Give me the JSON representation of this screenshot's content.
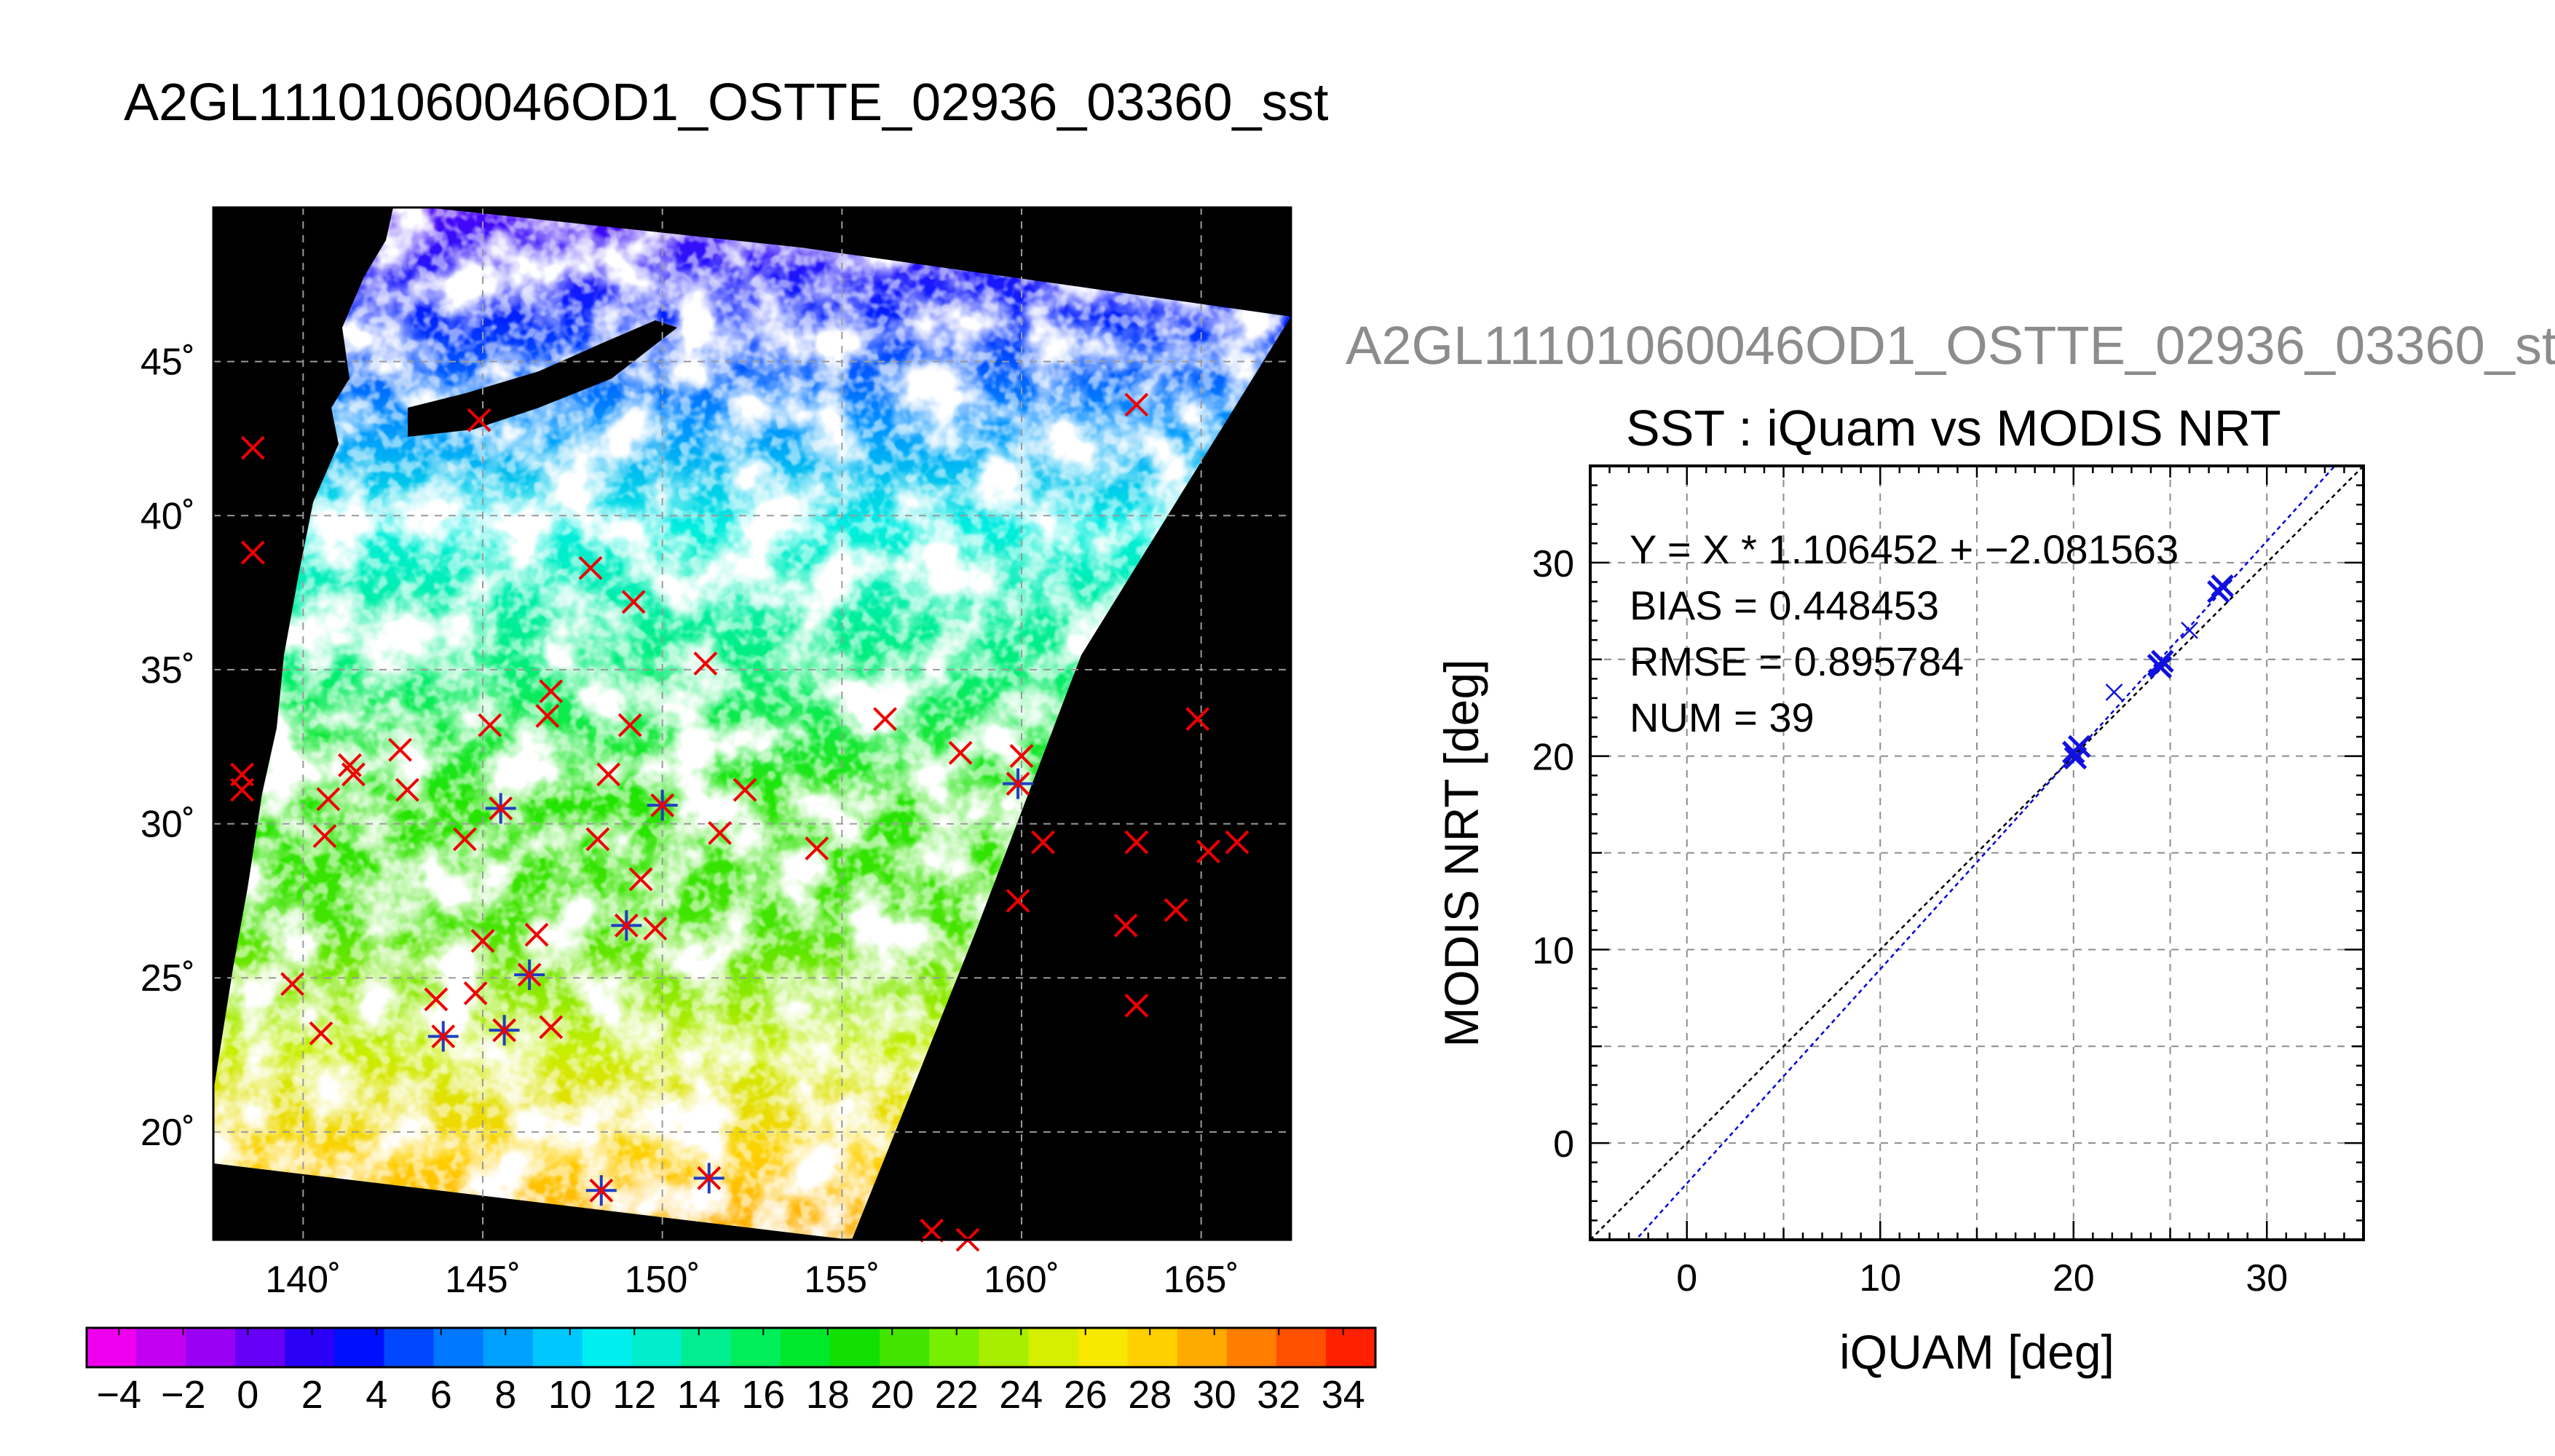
{
  "figure": {
    "main_title": "A2GL11101060046OD1_OSTTE_02936_03360_sst",
    "right_title": "A2GL11101060046OD1_OSTTE_02936_03360_st"
  },
  "chart_data": [
    {
      "type": "map",
      "xlim": [
        137.5,
        167.5
      ],
      "ylim": [
        16.5,
        50
      ],
      "lon_ticks": [
        140,
        145,
        150,
        155,
        160,
        165
      ],
      "lat_ticks": [
        20,
        25,
        30,
        35,
        40,
        45
      ],
      "lon_tick_labels": [
        "140˚",
        "145˚",
        "150˚",
        "155˚",
        "160˚",
        "165˚"
      ],
      "lat_tick_labels": [
        "20˚",
        "25˚",
        "30˚",
        "35˚",
        "40˚",
        "45˚"
      ],
      "grid": true,
      "colorbar": {
        "min": -5,
        "max": 35,
        "tick_values": [
          -4,
          -2,
          0,
          2,
          4,
          6,
          8,
          10,
          12,
          14,
          16,
          18,
          20,
          22,
          24,
          26,
          28,
          30,
          32,
          34
        ],
        "tick_labels": [
          "−4",
          "−2",
          "0",
          "2",
          "4",
          "6",
          "8",
          "10",
          "12",
          "14",
          "16",
          "18",
          "20",
          "22",
          "24",
          "26",
          "28",
          "30",
          "32",
          "34"
        ],
        "colors": [
          "#ee00ee",
          "#c400f0",
          "#9a00f4",
          "#6600f6",
          "#2a00f6",
          "#0010ff",
          "#0048ff",
          "#0078ff",
          "#00a0ff",
          "#00c8ff",
          "#00eeee",
          "#00eecc",
          "#00ee90",
          "#00ee5a",
          "#00e82a",
          "#12e000",
          "#44e400",
          "#78ee00",
          "#a8ee00",
          "#d6ee00",
          "#f6e800",
          "#ffd000",
          "#ffaa00",
          "#ff7e00",
          "#ff5000",
          "#ff2000"
        ]
      },
      "matchups": [
        {
          "lon": 163.2,
          "lat": 43.6
        },
        {
          "lon": 144.9,
          "lat": 43.1
        },
        {
          "lon": 138.6,
          "lat": 42.2
        },
        {
          "lon": 138.6,
          "lat": 38.8
        },
        {
          "lon": 148.0,
          "lat": 38.3
        },
        {
          "lon": 149.2,
          "lat": 37.2
        },
        {
          "lon": 151.2,
          "lat": 35.2
        },
        {
          "lon": 146.9,
          "lat": 34.3
        },
        {
          "lon": 146.8,
          "lat": 33.5
        },
        {
          "lon": 145.2,
          "lat": 33.2
        },
        {
          "lon": 149.1,
          "lat": 33.2
        },
        {
          "lon": 156.2,
          "lat": 33.4
        },
        {
          "lon": 164.9,
          "lat": 33.4
        },
        {
          "lon": 142.7,
          "lat": 32.4
        },
        {
          "lon": 141.3,
          "lat": 31.9
        },
        {
          "lon": 141.4,
          "lat": 31.6
        },
        {
          "lon": 138.3,
          "lat": 31.6
        },
        {
          "lon": 138.3,
          "lat": 31.1
        },
        {
          "lon": 142.9,
          "lat": 31.1
        },
        {
          "lon": 140.7,
          "lat": 30.8
        },
        {
          "lon": 148.5,
          "lat": 31.6
        },
        {
          "lon": 152.3,
          "lat": 31.1
        },
        {
          "lon": 158.3,
          "lat": 32.3
        },
        {
          "lon": 160.0,
          "lat": 32.2
        },
        {
          "lon": 145.5,
          "lat": 30.5,
          "star": true
        },
        {
          "lon": 150.0,
          "lat": 30.6,
          "star": true
        },
        {
          "lon": 140.6,
          "lat": 29.6
        },
        {
          "lon": 144.5,
          "lat": 29.5
        },
        {
          "lon": 148.2,
          "lat": 29.5
        },
        {
          "lon": 151.6,
          "lat": 29.7
        },
        {
          "lon": 154.3,
          "lat": 29.2
        },
        {
          "lon": 160.6,
          "lat": 29.4
        },
        {
          "lon": 163.2,
          "lat": 29.4
        },
        {
          "lon": 165.2,
          "lat": 29.1
        },
        {
          "lon": 166.0,
          "lat": 29.4
        },
        {
          "lon": 149.4,
          "lat": 28.2
        },
        {
          "lon": 159.9,
          "lat": 27.5
        },
        {
          "lon": 164.3,
          "lat": 27.2
        },
        {
          "lon": 162.9,
          "lat": 26.7
        },
        {
          "lon": 149.0,
          "lat": 26.7,
          "star": true
        },
        {
          "lon": 149.8,
          "lat": 26.6
        },
        {
          "lon": 145.0,
          "lat": 26.2
        },
        {
          "lon": 146.5,
          "lat": 26.4
        },
        {
          "lon": 146.3,
          "lat": 25.1,
          "star": true
        },
        {
          "lon": 139.7,
          "lat": 24.8
        },
        {
          "lon": 143.7,
          "lat": 24.3
        },
        {
          "lon": 144.8,
          "lat": 24.5
        },
        {
          "lon": 163.2,
          "lat": 24.1
        },
        {
          "lon": 140.5,
          "lat": 23.2
        },
        {
          "lon": 143.9,
          "lat": 23.1,
          "star": true
        },
        {
          "lon": 145.6,
          "lat": 23.3,
          "star": true
        },
        {
          "lon": 146.9,
          "lat": 23.4
        },
        {
          "lon": 148.3,
          "lat": 18.1,
          "star": true
        },
        {
          "lon": 151.3,
          "lat": 18.5,
          "star": true
        },
        {
          "lon": 157.5,
          "lat": 16.8
        },
        {
          "lon": 158.5,
          "lat": 16.5
        },
        {
          "lon": 159.9,
          "lat": 31.3,
          "star": true
        }
      ]
    },
    {
      "type": "scatter",
      "title": "SST : iQuam vs MODIS NRT",
      "xlabel": "iQUAM [deg]",
      "ylabel": "MODIS NRT [deg]",
      "xlim": [
        -5,
        35
      ],
      "ylim": [
        -5,
        35
      ],
      "x_ticks": [
        0,
        10,
        20,
        30
      ],
      "y_ticks": [
        0,
        10,
        20,
        30
      ],
      "grid": true,
      "annotations": [
        "Y = X * 1.106452 + −2.081563",
        "BIAS = 0.448453",
        "RMSE = 0.895784",
        "NUM = 39"
      ],
      "slope": 1.106452,
      "intercept": -2.081563,
      "points": [
        {
          "x": 20.0,
          "y": 20.2,
          "size": "large"
        },
        {
          "x": 20.3,
          "y": 20.5,
          "size": "large"
        },
        {
          "x": 20.1,
          "y": 19.9,
          "size": "large"
        },
        {
          "x": 22.1,
          "y": 23.3,
          "size": "small"
        },
        {
          "x": 24.4,
          "y": 24.7,
          "size": "large"
        },
        {
          "x": 24.6,
          "y": 24.9,
          "size": "large"
        },
        {
          "x": 24.5,
          "y": 24.6,
          "size": "large"
        },
        {
          "x": 26.0,
          "y": 26.5,
          "size": "small"
        },
        {
          "x": 27.5,
          "y": 28.5,
          "size": "large"
        },
        {
          "x": 27.7,
          "y": 28.8,
          "size": "large"
        }
      ]
    }
  ]
}
